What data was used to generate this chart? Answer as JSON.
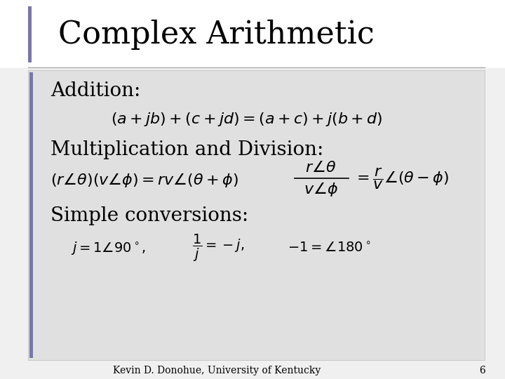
{
  "title": "Complex Arithmetic",
  "bg_color": "#f0f0f0",
  "title_area_color": "#ffffff",
  "content_bg_color": "#e0e0e0",
  "bar_color": "#7777aa",
  "title_fontsize": 32,
  "section_fontsize": 20,
  "footer_text": "Kevin D. Donohue, University of Kentucky",
  "footer_number": "6",
  "addition_label": "Addition:",
  "mult_label": "Multiplication and Division:",
  "conv_label": "Simple conversions:"
}
